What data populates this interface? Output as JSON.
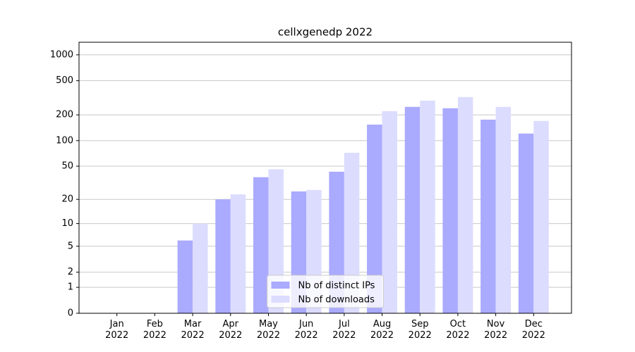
{
  "chart_data": {
    "type": "bar",
    "title": "cellxgenedp 2022",
    "categories": [
      "Jan\n2022",
      "Feb\n2022",
      "Mar\n2022",
      "Apr\n2022",
      "May\n2022",
      "Jun\n2022",
      "Jul\n2022",
      "Aug\n2022",
      "Sep\n2022",
      "Oct\n2022",
      "Nov\n2022",
      "Dec\n2022"
    ],
    "series": [
      {
        "name": "Nb of distinct IPs",
        "color": "#aaaaff",
        "values": [
          0,
          0,
          6,
          20,
          37,
          25,
          43,
          154,
          248,
          239,
          176,
          121
        ]
      },
      {
        "name": "Nb of downloads",
        "color": "#dcdcff",
        "values": [
          0,
          0,
          10,
          23,
          46,
          26,
          72,
          221,
          293,
          323,
          248,
          170
        ]
      }
    ],
    "yscale": "log1p",
    "ylim": [
      0,
      1400
    ],
    "yticks": [
      0,
      1,
      2,
      5,
      10,
      20,
      50,
      100,
      200,
      500,
      1000
    ],
    "grid": true,
    "legend": "lower center"
  }
}
